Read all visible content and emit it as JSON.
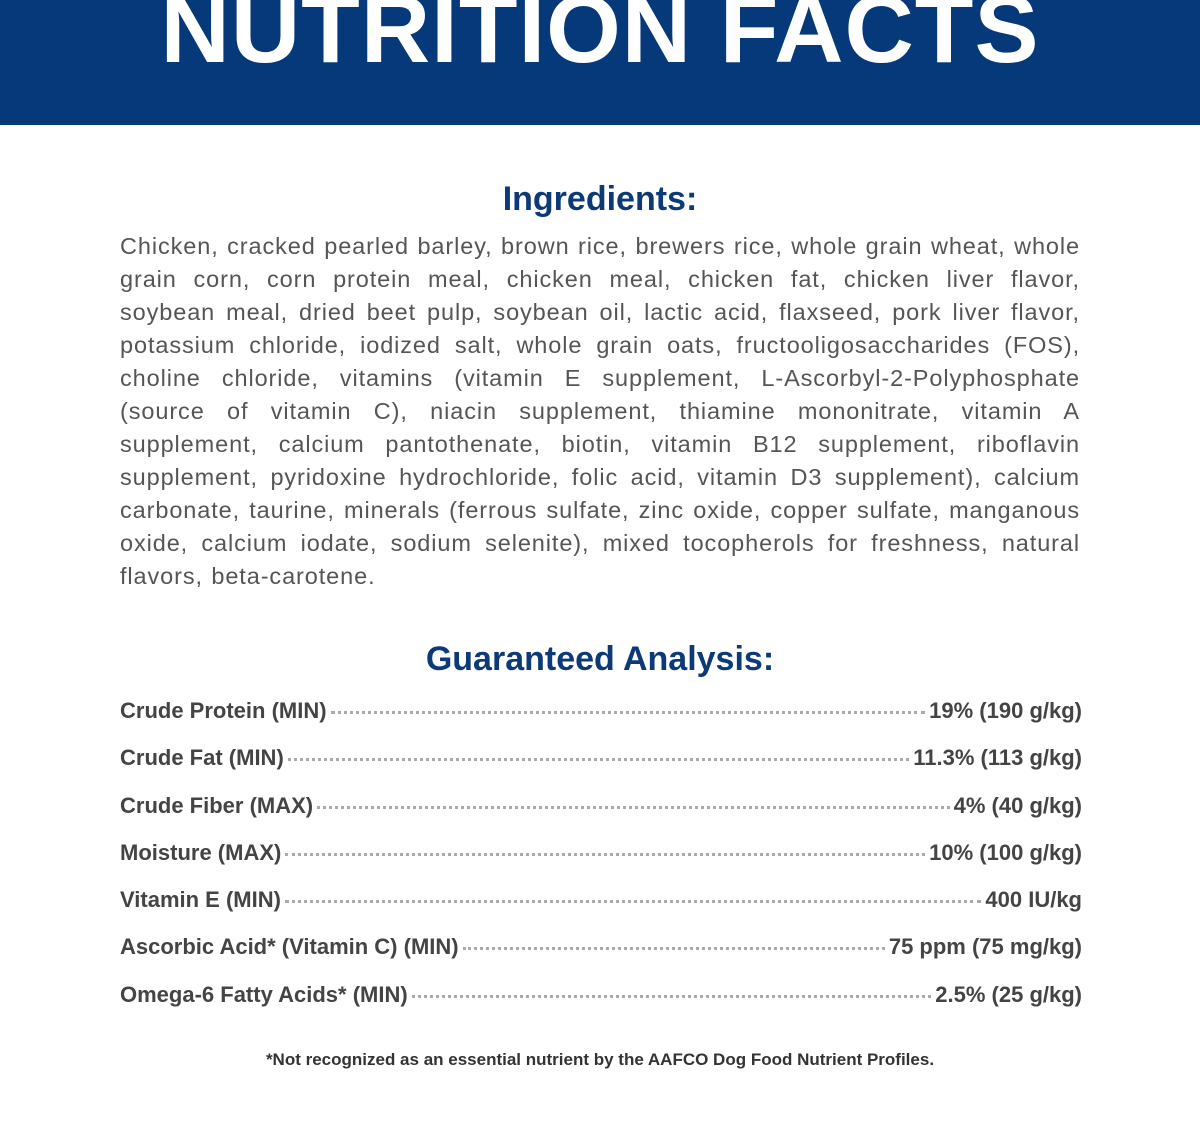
{
  "header": {
    "title": "NUTRITION FACTS"
  },
  "ingredients": {
    "heading": "Ingredients:",
    "text": "Chicken, cracked pearled barley, brown rice, brewers rice, whole grain wheat, whole grain corn, corn protein meal, chicken meal, chicken fat, chicken liver flavor, soybean meal, dried beet pulp, soybean oil, lactic acid, flaxseed, pork liver flavor, potassium chloride, iodized salt, whole grain oats, fructooligosaccharides (FOS), choline chloride, vitamins (vitamin E supplement, L-Ascorbyl-2-Polyphosphate (source of vitamin C), niacin supplement, thiamine mononitrate, vitamin A supplement, calcium pantothenate, biotin, vitamin B12 supplement, riboflavin supplement, pyridoxine hydrochloride, folic acid, vitamin D3 supplement), calcium carbonate, taurine, minerals (ferrous sulfate, zinc oxide, copper sulfate, manganous oxide, calcium iodate, sodium selenite), mixed tocopherols for freshness, natural flavors, beta-carotene."
  },
  "analysis": {
    "heading": "Guaranteed Analysis:",
    "rows": [
      [
        "Crude Protein (MIN)",
        "19% (190 g/kg)"
      ],
      [
        "Crude Fat (MIN)",
        "11.3% (113 g/kg)"
      ],
      [
        "Crude Fiber (MAX)",
        "4% (40 g/kg)"
      ],
      [
        "Moisture (MAX)",
        "10% (100 g/kg)"
      ],
      [
        "Vitamin E (MIN)",
        "400 IU/kg"
      ],
      [
        "Ascorbic Acid* (Vitamin C) (MIN)",
        "75 ppm (75 mg/kg)"
      ],
      [
        "Omega-6 Fatty Acids* (MIN)",
        "2.5% (25 g/kg)"
      ]
    ]
  },
  "footnote": "*Not recognized as an essential nutrient by the AAFCO Dog Food Nutrient Profiles."
}
